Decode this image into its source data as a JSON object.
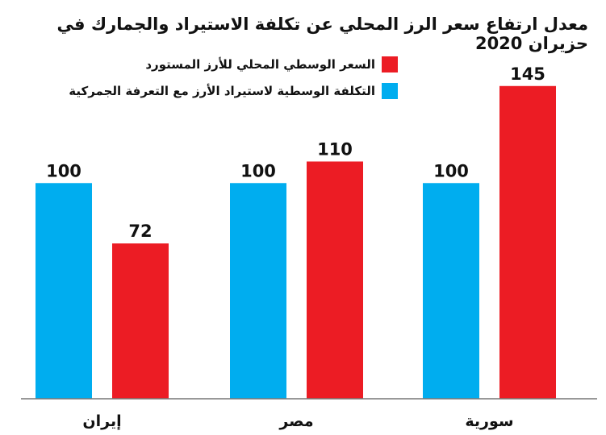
{
  "title": "معدل ارتفاع سعر الرز المحلي عن تكلفة الاستيراد والجمارك في حزيران 2020",
  "colors": {
    "red": "#ec1c24",
    "blue": "#00adef",
    "axis": "#777777"
  },
  "chart_data": {
    "type": "bar",
    "categories": [
      "إيران",
      "مصر",
      "سورية"
    ],
    "series": [
      {
        "name": "التكلفة الوسطية لاستيراد الأرز مع التعرفة الجمركية",
        "color": "#00adef",
        "values": [
          100,
          100,
          100
        ]
      },
      {
        "name": "السعر الوسطي المحلي للأرز المستورد",
        "color": "#ec1c24",
        "values": [
          72,
          110,
          145
        ]
      }
    ],
    "title": "معدل ارتفاع سعر الرز المحلي عن تكلفة الاستيراد والجمارك في حزيران 2020",
    "xlabel": "",
    "ylabel": "",
    "ylim": [
      0,
      155
    ],
    "grid": false,
    "legend_position": "top-left"
  }
}
